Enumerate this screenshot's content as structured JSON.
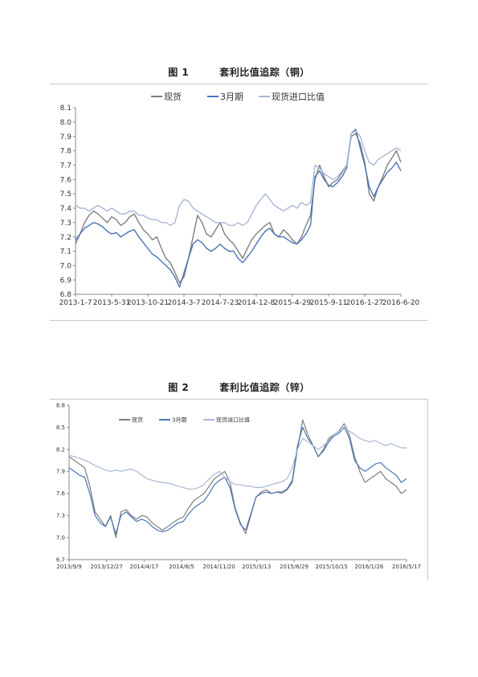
{
  "figures": [
    {
      "number": "图 1",
      "title": "套利比值追踪（铜）"
    },
    {
      "number": "图 2",
      "title": "套利比值追踪（锌）"
    }
  ],
  "colors": {
    "spot": "#7f7f7f",
    "m3": "#4a75b5",
    "ratio": "#a9b8d6"
  },
  "chart_data": [
    {
      "type": "line",
      "title": "套利比值追踪（铜）",
      "legend_position": "top",
      "grid": false,
      "x_tick_labels": [
        "2013-1-7",
        "2013-5-31",
        "2013-10-21",
        "2014-3-7",
        "2014-7-23",
        "2014-12-8",
        "2015-4-29",
        "2015-9-11",
        "2016-1-27",
        "2016-6-20"
      ],
      "ylim": [
        6.8,
        8.1
      ],
      "y_ticks": [
        6.8,
        6.9,
        7.0,
        7.1,
        7.2,
        7.3,
        7.4,
        7.5,
        7.6,
        7.7,
        7.8,
        7.9,
        8.0,
        8.1
      ],
      "series": [
        {
          "name": "现货",
          "values": [
            7.15,
            7.22,
            7.3,
            7.35,
            7.38,
            7.36,
            7.33,
            7.3,
            7.34,
            7.32,
            7.28,
            7.3,
            7.34,
            7.36,
            7.3,
            7.25,
            7.22,
            7.18,
            7.2,
            7.12,
            7.05,
            7.02,
            6.95,
            6.88,
            6.92,
            7.05,
            7.2,
            7.35,
            7.3,
            7.22,
            7.2,
            7.25,
            7.3,
            7.22,
            7.18,
            7.15,
            7.1,
            7.05,
            7.12,
            7.18,
            7.22,
            7.25,
            7.28,
            7.3,
            7.22,
            7.2,
            7.25,
            7.22,
            7.18,
            7.15,
            7.2,
            7.28,
            7.35,
            7.6,
            7.7,
            7.62,
            7.55,
            7.58,
            7.6,
            7.65,
            7.7,
            7.9,
            7.92,
            7.85,
            7.72,
            7.5,
            7.45,
            7.55,
            7.62,
            7.7,
            7.75,
            7.8,
            7.72
          ]
        },
        {
          "name": "3月期",
          "values": [
            7.18,
            7.22,
            7.26,
            7.28,
            7.3,
            7.29,
            7.27,
            7.24,
            7.22,
            7.23,
            7.2,
            7.22,
            7.24,
            7.25,
            7.2,
            7.16,
            7.12,
            7.08,
            7.06,
            7.03,
            7.0,
            6.97,
            6.92,
            6.85,
            6.95,
            7.05,
            7.15,
            7.18,
            7.16,
            7.12,
            7.1,
            7.12,
            7.15,
            7.12,
            7.1,
            7.1,
            7.05,
            7.02,
            7.06,
            7.1,
            7.15,
            7.2,
            7.24,
            7.26,
            7.22,
            7.2,
            7.2,
            7.18,
            7.16,
            7.15,
            7.18,
            7.22,
            7.28,
            7.62,
            7.66,
            7.6,
            7.56,
            7.55,
            7.58,
            7.62,
            7.68,
            7.92,
            7.95,
            7.82,
            7.7,
            7.55,
            7.48,
            7.55,
            7.6,
            7.65,
            7.68,
            7.72,
            7.66
          ]
        },
        {
          "name": "现货进口比值",
          "values": [
            7.42,
            7.4,
            7.4,
            7.38,
            7.4,
            7.42,
            7.4,
            7.38,
            7.4,
            7.38,
            7.36,
            7.36,
            7.38,
            7.38,
            7.35,
            7.35,
            7.33,
            7.32,
            7.32,
            7.3,
            7.3,
            7.28,
            7.3,
            7.42,
            7.46,
            7.45,
            7.4,
            7.38,
            7.36,
            7.34,
            7.32,
            7.3,
            7.3,
            7.3,
            7.28,
            7.28,
            7.3,
            7.28,
            7.3,
            7.36,
            7.42,
            7.46,
            7.5,
            7.46,
            7.42,
            7.4,
            7.38,
            7.4,
            7.42,
            7.4,
            7.44,
            7.42,
            7.44,
            7.7,
            7.68,
            7.64,
            7.62,
            7.6,
            7.62,
            7.66,
            7.7,
            7.92,
            7.94,
            7.9,
            7.8,
            7.72,
            7.7,
            7.74,
            7.76,
            7.78,
            7.8,
            7.82,
            7.8
          ]
        }
      ]
    },
    {
      "type": "line",
      "title": "套利比值追踪（锌）",
      "legend_position": "top-left",
      "grid": false,
      "x_tick_labels": [
        "2013/9/9",
        "2013/12/27",
        "2014/4/17",
        "2014/8/5",
        "2014/11/20",
        "2015/3/13",
        "2015/6/29",
        "2015/10/15",
        "2016/1/26",
        "2016/5/17"
      ],
      "ylim": [
        6.7,
        8.8
      ],
      "y_ticks": [
        6.7,
        7.0,
        7.3,
        7.6,
        7.9,
        8.2,
        8.5,
        8.8
      ],
      "series": [
        {
          "name": "现货",
          "values": [
            8.1,
            8.05,
            8.0,
            7.95,
            7.7,
            7.35,
            7.25,
            7.15,
            7.3,
            7.0,
            7.35,
            7.38,
            7.3,
            7.25,
            7.3,
            7.28,
            7.2,
            7.15,
            7.1,
            7.15,
            7.2,
            7.25,
            7.28,
            7.4,
            7.5,
            7.55,
            7.6,
            7.7,
            7.8,
            7.85,
            7.9,
            7.75,
            7.4,
            7.2,
            7.05,
            7.3,
            7.55,
            7.62,
            7.65,
            7.6,
            7.62,
            7.6,
            7.65,
            7.75,
            8.2,
            8.6,
            8.4,
            8.25,
            8.1,
            8.2,
            8.35,
            8.4,
            8.45,
            8.55,
            8.4,
            8.1,
            7.9,
            7.75,
            7.8,
            7.85,
            7.9,
            7.8,
            7.75,
            7.7,
            7.6,
            7.65
          ]
        },
        {
          "name": "3月期",
          "values": [
            7.95,
            7.9,
            7.85,
            7.82,
            7.6,
            7.3,
            7.2,
            7.15,
            7.28,
            7.05,
            7.3,
            7.35,
            7.28,
            7.22,
            7.25,
            7.22,
            7.15,
            7.1,
            7.08,
            7.1,
            7.15,
            7.2,
            7.22,
            7.32,
            7.4,
            7.45,
            7.5,
            7.6,
            7.72,
            7.78,
            7.82,
            7.68,
            7.38,
            7.18,
            7.1,
            7.32,
            7.55,
            7.6,
            7.62,
            7.6,
            7.62,
            7.62,
            7.66,
            7.78,
            8.25,
            8.5,
            8.35,
            8.25,
            8.1,
            8.18,
            8.3,
            8.38,
            8.42,
            8.5,
            8.35,
            8.05,
            7.95,
            7.9,
            7.95,
            8.0,
            8.02,
            7.95,
            7.9,
            7.85,
            7.75,
            7.8
          ]
        },
        {
          "name": "现货进口比值",
          "values": [
            8.12,
            8.1,
            8.08,
            8.05,
            8.02,
            7.98,
            7.95,
            7.92,
            7.9,
            7.92,
            7.9,
            7.92,
            7.93,
            7.9,
            7.85,
            7.8,
            7.78,
            7.76,
            7.75,
            7.74,
            7.72,
            7.7,
            7.68,
            7.66,
            7.66,
            7.68,
            7.72,
            7.8,
            7.86,
            7.9,
            7.82,
            7.76,
            7.72,
            7.72,
            7.7,
            7.7,
            7.68,
            7.68,
            7.7,
            7.72,
            7.74,
            7.76,
            7.8,
            7.95,
            8.2,
            8.35,
            8.3,
            8.25,
            8.2,
            8.25,
            8.32,
            8.4,
            8.45,
            8.48,
            8.45,
            8.4,
            8.35,
            8.32,
            8.3,
            8.32,
            8.28,
            8.25,
            8.28,
            8.25,
            8.22,
            8.22
          ]
        }
      ]
    }
  ]
}
